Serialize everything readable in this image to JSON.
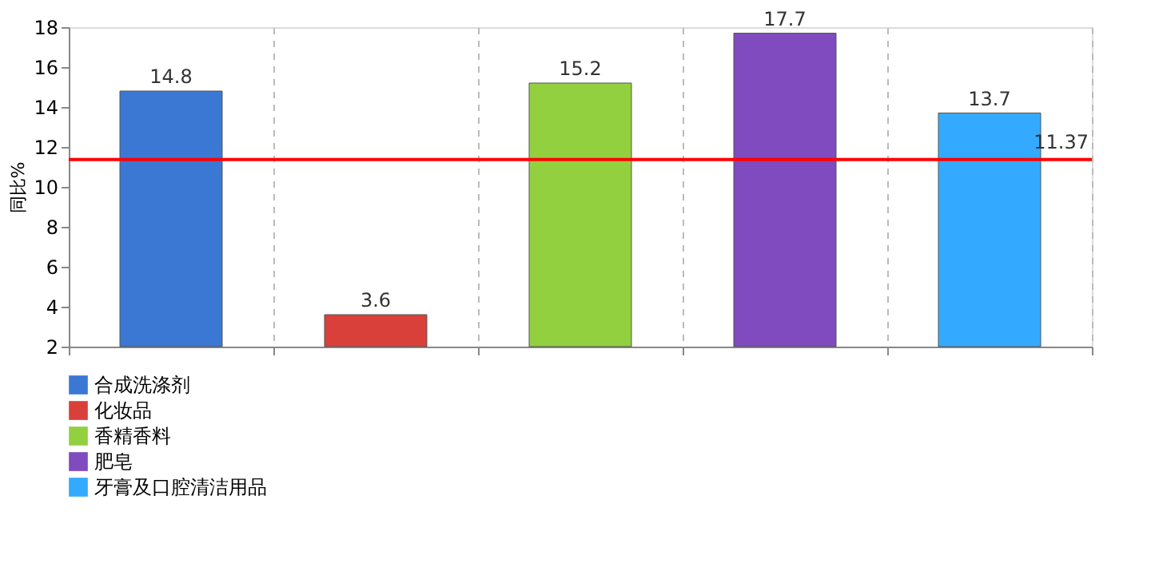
{
  "chart_data": {
    "type": "bar",
    "ylabel": "同比%",
    "categories": [
      null,
      null,
      null,
      null,
      null
    ],
    "series": [
      {
        "name": "合成洗涤剂",
        "color": "#3a78d4",
        "values": [
          14.8,
          null,
          null,
          null,
          null
        ]
      },
      {
        "name": "化妆品",
        "color": "#d9403a",
        "values": [
          null,
          3.6,
          null,
          null,
          null
        ]
      },
      {
        "name": "香精香料",
        "color": "#92d040",
        "values": [
          null,
          null,
          15.2,
          null,
          null
        ]
      },
      {
        "name": "肥皂",
        "color": "#7f4bbf",
        "values": [
          null,
          null,
          null,
          17.7,
          null
        ]
      },
      {
        "name": "牙膏及口腔清洁用品",
        "color": "#33aaff",
        "values": [
          null,
          null,
          null,
          null,
          13.7
        ]
      }
    ],
    "ylim": [
      2,
      18
    ],
    "yticks": [
      2,
      4,
      6,
      8,
      10,
      12,
      14,
      16,
      18
    ],
    "ref_lines": [
      {
        "axis": "y",
        "value": 11.37,
        "label": "11.37",
        "color": "#ff0000"
      }
    ],
    "data_labels": true,
    "grid": "x",
    "legend": "bottom",
    "tick_labels": "y"
  }
}
